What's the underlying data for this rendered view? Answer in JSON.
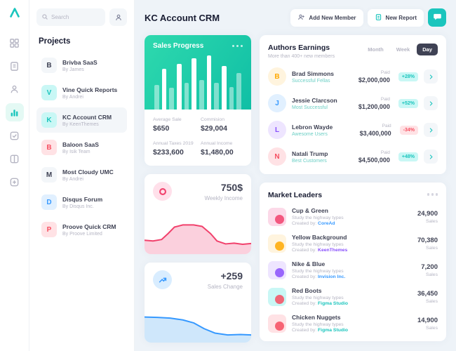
{
  "colors": {
    "teal": "#1BC5BD",
    "gradient_start": "#2ED9AE",
    "gradient_end": "#10BFA5",
    "pink_line": "#F1416C",
    "pink_fill": "#FBD0DD",
    "blue_line": "#3699FF",
    "blue_fill": "#CFE7FB",
    "dark": "#3F4254",
    "muted": "#B5B5C3"
  },
  "rail": {
    "icons": [
      "logo",
      "dashboard",
      "pages",
      "team",
      "stats",
      "tasks",
      "board",
      "add"
    ],
    "active": "stats"
  },
  "sidebar": {
    "search_placeholder": "Search",
    "heading": "Projects",
    "items": [
      {
        "initial": "B",
        "name": "Brivba SaaS",
        "by": "By James",
        "bg": "#F3F6F9",
        "fg": "#3F4254"
      },
      {
        "initial": "V",
        "name": "Vine Quick Reports",
        "by": "By Andrei",
        "bg": "#C9F7F5",
        "fg": "#1BC5BD"
      },
      {
        "initial": "K",
        "name": "KC Account CRM",
        "by": "By KeenThemes",
        "bg": "#C9F7F5",
        "fg": "#1BC5BD"
      },
      {
        "initial": "B",
        "name": "Baloon SaaS",
        "by": "By Isik Team",
        "bg": "#FFE2E5",
        "fg": "#F64E60"
      },
      {
        "initial": "M",
        "name": "Most Cloudy UMC",
        "by": "By Andrei",
        "bg": "#F3F6F9",
        "fg": "#3F4254"
      },
      {
        "initial": "D",
        "name": "Disqus Forum",
        "by": "By Disqus Inc.",
        "bg": "#E1F0FF",
        "fg": "#3699FF"
      },
      {
        "initial": "P",
        "name": "Proove Quick CRM",
        "by": "By Proove Limited",
        "bg": "#FFE2E5",
        "fg": "#F64E60"
      }
    ]
  },
  "header": {
    "title": "KC Account CRM",
    "add_member_label": "Add New Member",
    "new_report_label": "New Report"
  },
  "sales_progress": {
    "title": "Sales Progress",
    "chart_data": {
      "type": "bar",
      "values": [
        45,
        75,
        40,
        85,
        50,
        95,
        55,
        100,
        50,
        80,
        42,
        68
      ]
    },
    "stats": [
      {
        "label": "Average Sale",
        "value": "$650"
      },
      {
        "label": "Commision",
        "value": "$29,004"
      },
      {
        "label": "Annual Taxes 2019",
        "value": "$233,600"
      },
      {
        "label": "Annual Income",
        "value": "$1,480,00"
      }
    ]
  },
  "authors": {
    "title": "Authors Earnings",
    "subtitle": "More than 400+ new members",
    "tabs": [
      {
        "label": "Month",
        "active": false
      },
      {
        "label": "Week",
        "active": false
      },
      {
        "label": "Day",
        "active": true
      }
    ],
    "rows": [
      {
        "name": "Brad Simmons",
        "tag": "Successful Fellas",
        "paid_label": "Paid",
        "amount": "$2,000,000",
        "pct": "+28%",
        "initial": "B",
        "av_bg": "#FFF4DE",
        "av_fg": "#FFA800"
      },
      {
        "name": "Jessie Clarcson",
        "tag": "Most Successful",
        "paid_label": "Paid",
        "amount": "$1,200,000",
        "pct": "+52%",
        "initial": "J",
        "av_bg": "#E1F0FF",
        "av_fg": "#3699FF"
      },
      {
        "name": "Lebron Wayde",
        "tag": "Awesome Users",
        "paid_label": "Paid",
        "amount": "$3,400,000",
        "pct": "-34%",
        "initial": "L",
        "av_bg": "#EEE5FF",
        "av_fg": "#8950FC"
      },
      {
        "name": "Natali Trump",
        "tag": "Best Customers",
        "paid_label": "Paid",
        "amount": "$4,500,000",
        "pct": "+48%",
        "initial": "N",
        "av_bg": "#FFE2E5",
        "av_fg": "#F64E60"
      }
    ]
  },
  "weekly_income": {
    "value": "750$",
    "label": "Weekly Income",
    "chart_data": {
      "type": "area",
      "points": [
        [
          0,
          62
        ],
        [
          8,
          64
        ],
        [
          16,
          60
        ],
        [
          22,
          44
        ],
        [
          28,
          26
        ],
        [
          36,
          20
        ],
        [
          46,
          20
        ],
        [
          54,
          24
        ],
        [
          62,
          44
        ],
        [
          68,
          64
        ],
        [
          76,
          72
        ],
        [
          84,
          70
        ],
        [
          92,
          73
        ],
        [
          100,
          71
        ]
      ]
    }
  },
  "sales_change": {
    "value": "+259",
    "label": "Sales Change",
    "chart_data": {
      "type": "area",
      "points": [
        [
          0,
          30
        ],
        [
          12,
          31
        ],
        [
          24,
          33
        ],
        [
          36,
          38
        ],
        [
          46,
          46
        ],
        [
          56,
          62
        ],
        [
          66,
          74
        ],
        [
          78,
          79
        ],
        [
          90,
          78
        ],
        [
          100,
          79
        ]
      ]
    }
  },
  "market": {
    "title": "Market Leaders",
    "rows": [
      {
        "name": "Cup & Green",
        "desc": "Study the highway types",
        "created_prefix": "Created by:",
        "creator": "CoreAd",
        "creator_color": "#3699FF",
        "value": "24,900",
        "unit": "Sales",
        "thumb_bg": "#FCD9E8",
        "thumb_fg": "#F1416C"
      },
      {
        "name": "Yellow Background",
        "desc": "Study the highway types",
        "created_prefix": "Created by:",
        "creator": "KeenThemes",
        "creator_color": "#8950FC",
        "value": "70,380",
        "unit": "Sales",
        "thumb_bg": "#FFF4DE",
        "thumb_fg": "#FFA800"
      },
      {
        "name": "Nike & Blue",
        "desc": "Study the highway types",
        "created_prefix": "Created by:",
        "creator": "Invision Inc.",
        "creator_color": "#3699FF",
        "value": "7,200",
        "unit": "Sales",
        "thumb_bg": "#EEE5FF",
        "thumb_fg": "#8950FC"
      },
      {
        "name": "Red Boots",
        "desc": "Study the highway types",
        "created_prefix": "Created by:",
        "creator": "Figma Studio",
        "creator_color": "#1BC5BD",
        "value": "36,450",
        "unit": "Sales",
        "thumb_bg": "#C9F7F5",
        "thumb_fg": "#F64E60"
      },
      {
        "name": "Chicken Nuggets",
        "desc": "Study the highway types",
        "created_prefix": "Created by:",
        "creator": "Figma Studio",
        "creator_color": "#1BC5BD",
        "value": "14,900",
        "unit": "Sales",
        "thumb_bg": "#FFE2E5",
        "thumb_fg": "#F64E60"
      }
    ]
  }
}
